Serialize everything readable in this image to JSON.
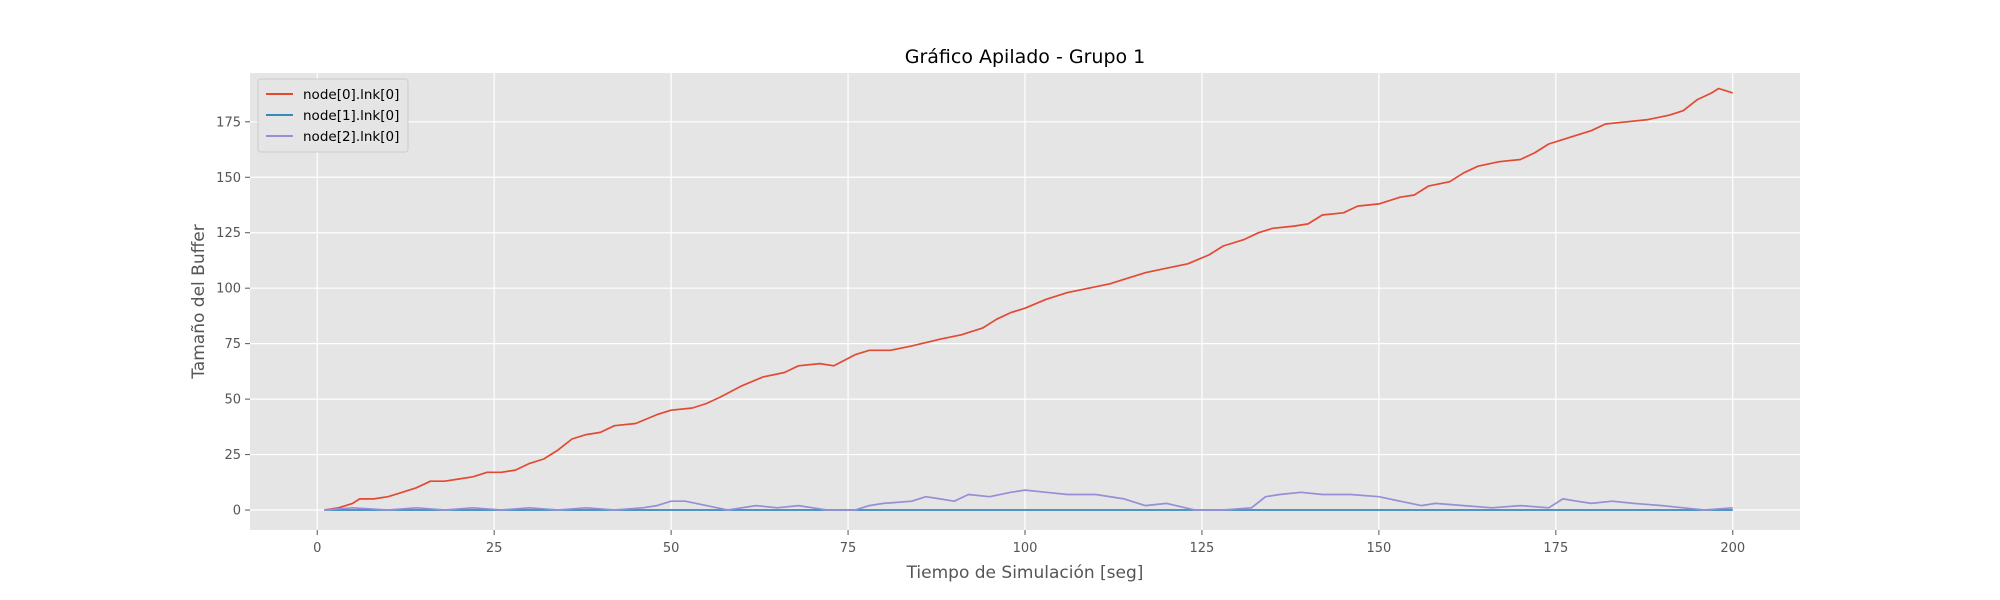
{
  "chart_data": {
    "type": "line",
    "title": "Gráfico Apilado - Grupo 1",
    "xlabel": "Tiempo de Simulación [seg]",
    "ylabel": "Tamaño del Buffer",
    "xlim": [
      -9.5,
      209.5
    ],
    "ylim": [
      -9,
      197
    ],
    "xticks": [
      0,
      25,
      50,
      75,
      100,
      125,
      150,
      175,
      200
    ],
    "yticks": [
      0,
      25,
      50,
      75,
      100,
      125,
      150,
      175
    ],
    "grid": true,
    "legend_position": "top-left",
    "series": [
      {
        "name": "node[0].lnk[0]",
        "color": "#E24A33",
        "points": [
          [
            1,
            0
          ],
          [
            3,
            1
          ],
          [
            5,
            3
          ],
          [
            6,
            5
          ],
          [
            8,
            5
          ],
          [
            10,
            6
          ],
          [
            12,
            8
          ],
          [
            14,
            10
          ],
          [
            16,
            13
          ],
          [
            18,
            13
          ],
          [
            20,
            14
          ],
          [
            22,
            15
          ],
          [
            24,
            17
          ],
          [
            26,
            17
          ],
          [
            28,
            18
          ],
          [
            30,
            21
          ],
          [
            32,
            23
          ],
          [
            34,
            27
          ],
          [
            36,
            32
          ],
          [
            38,
            34
          ],
          [
            40,
            35
          ],
          [
            42,
            38
          ],
          [
            45,
            39
          ],
          [
            48,
            43
          ],
          [
            50,
            45
          ],
          [
            53,
            46
          ],
          [
            55,
            48
          ],
          [
            57,
            51
          ],
          [
            60,
            56
          ],
          [
            63,
            60
          ],
          [
            66,
            62
          ],
          [
            68,
            65
          ],
          [
            71,
            66
          ],
          [
            73,
            65
          ],
          [
            76,
            70
          ],
          [
            78,
            72
          ],
          [
            81,
            72
          ],
          [
            84,
            74
          ],
          [
            88,
            77
          ],
          [
            91,
            79
          ],
          [
            94,
            82
          ],
          [
            96,
            86
          ],
          [
            98,
            89
          ],
          [
            100,
            91
          ],
          [
            103,
            95
          ],
          [
            106,
            98
          ],
          [
            109,
            100
          ],
          [
            112,
            102
          ],
          [
            114,
            104
          ],
          [
            117,
            107
          ],
          [
            120,
            109
          ],
          [
            123,
            111
          ],
          [
            126,
            115
          ],
          [
            128,
            119
          ],
          [
            131,
            122
          ],
          [
            133,
            125
          ],
          [
            135,
            127
          ],
          [
            138,
            128
          ],
          [
            140,
            129
          ],
          [
            142,
            133
          ],
          [
            145,
            134
          ],
          [
            147,
            137
          ],
          [
            150,
            138
          ],
          [
            153,
            141
          ],
          [
            155,
            142
          ],
          [
            157,
            146
          ],
          [
            160,
            148
          ],
          [
            162,
            152
          ],
          [
            164,
            155
          ],
          [
            167,
            157
          ],
          [
            170,
            158
          ],
          [
            172,
            161
          ],
          [
            174,
            165
          ],
          [
            176,
            167
          ],
          [
            178,
            169
          ],
          [
            180,
            171
          ],
          [
            182,
            174
          ],
          [
            185,
            175
          ],
          [
            188,
            176
          ],
          [
            191,
            178
          ],
          [
            193,
            180
          ],
          [
            195,
            185
          ],
          [
            197,
            188
          ],
          [
            198,
            190
          ],
          [
            199,
            189
          ],
          [
            200,
            188
          ]
        ]
      },
      {
        "name": "node[1].lnk[0]",
        "color": "#348ABD",
        "points": [
          [
            1,
            0
          ],
          [
            200,
            0
          ]
        ]
      },
      {
        "name": "node[2].lnk[0]",
        "color": "#988ED5",
        "points": [
          [
            1,
            0
          ],
          [
            5,
            1
          ],
          [
            10,
            0
          ],
          [
            14,
            1
          ],
          [
            18,
            0
          ],
          [
            22,
            1
          ],
          [
            26,
            0
          ],
          [
            30,
            1
          ],
          [
            34,
            0
          ],
          [
            38,
            1
          ],
          [
            42,
            0
          ],
          [
            46,
            1
          ],
          [
            48,
            2
          ],
          [
            50,
            4
          ],
          [
            52,
            4
          ],
          [
            55,
            2
          ],
          [
            58,
            0
          ],
          [
            62,
            2
          ],
          [
            65,
            1
          ],
          [
            68,
            2
          ],
          [
            72,
            0
          ],
          [
            76,
            0
          ],
          [
            78,
            2
          ],
          [
            80,
            3
          ],
          [
            84,
            4
          ],
          [
            86,
            6
          ],
          [
            88,
            5
          ],
          [
            90,
            4
          ],
          [
            92,
            7
          ],
          [
            95,
            6
          ],
          [
            98,
            8
          ],
          [
            100,
            9
          ],
          [
            103,
            8
          ],
          [
            106,
            7
          ],
          [
            110,
            7
          ],
          [
            114,
            5
          ],
          [
            117,
            2
          ],
          [
            120,
            3
          ],
          [
            124,
            0
          ],
          [
            128,
            0
          ],
          [
            132,
            1
          ],
          [
            134,
            6
          ],
          [
            136,
            7
          ],
          [
            139,
            8
          ],
          [
            142,
            7
          ],
          [
            146,
            7
          ],
          [
            150,
            6
          ],
          [
            153,
            4
          ],
          [
            156,
            2
          ],
          [
            158,
            3
          ],
          [
            162,
            2
          ],
          [
            166,
            1
          ],
          [
            170,
            2
          ],
          [
            174,
            1
          ],
          [
            176,
            5
          ],
          [
            178,
            4
          ],
          [
            180,
            3
          ],
          [
            183,
            4
          ],
          [
            186,
            3
          ],
          [
            190,
            2
          ],
          [
            193,
            1
          ],
          [
            196,
            0
          ],
          [
            200,
            1
          ]
        ]
      }
    ]
  }
}
